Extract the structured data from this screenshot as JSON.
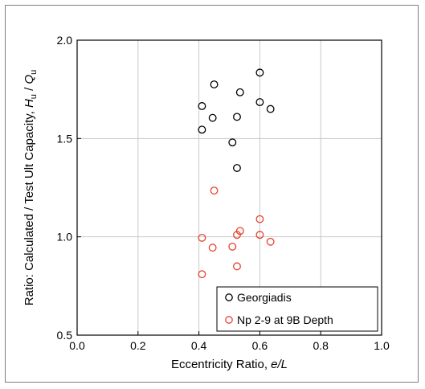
{
  "chart_data": {
    "type": "scatter",
    "xlabel_main": "Eccentricity Ratio, ",
    "xlabel_var": "e/L",
    "ylabel_main": "Ratio: Calculated / Test Ult Capacity, ",
    "ylabel_var_h": "H",
    "ylabel_sub_u1": "u",
    "ylabel_slash": " / ",
    "ylabel_var_q": "Q",
    "ylabel_sub_u2": "u",
    "xlim": [
      0.0,
      1.0
    ],
    "ylim": [
      0.5,
      2.0
    ],
    "xticks": [
      "0.0",
      "0.2",
      "0.4",
      "0.6",
      "0.8",
      "1.0"
    ],
    "yticks": [
      "0.5",
      "1.0",
      "1.5",
      "2.0"
    ],
    "grid": true,
    "legend_position": "bottom-right",
    "series": [
      {
        "name": "Georgiadis",
        "color": "#000000",
        "marker": "open-circle",
        "x": [
          0.41,
          0.41,
          0.445,
          0.45,
          0.51,
          0.525,
          0.525,
          0.535,
          0.6,
          0.6,
          0.635
        ],
        "y": [
          1.665,
          1.545,
          1.605,
          1.775,
          1.48,
          1.61,
          1.35,
          1.735,
          1.835,
          1.685,
          1.65
        ]
      },
      {
        "name": "Np 2-9 at 9B Depth",
        "color": "#e8412c",
        "marker": "open-circle",
        "x": [
          0.41,
          0.41,
          0.445,
          0.45,
          0.51,
          0.525,
          0.525,
          0.535,
          0.6,
          0.6,
          0.635
        ],
        "y": [
          0.995,
          0.81,
          0.945,
          1.235,
          0.95,
          0.85,
          1.01,
          1.03,
          1.09,
          1.01,
          0.975
        ]
      }
    ]
  }
}
